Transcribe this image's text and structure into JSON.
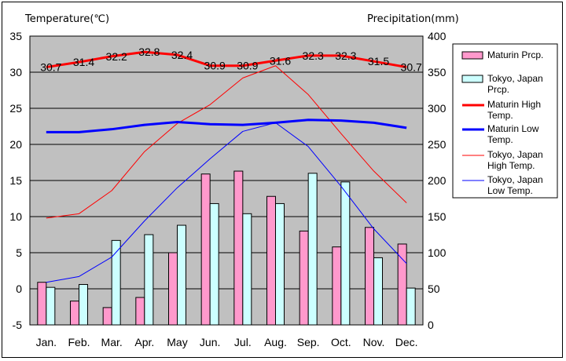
{
  "chart_data": {
    "type": "bar+line",
    "left_axis_title": "Temperature(℃)",
    "right_axis_title": "Precipitation(mm)",
    "ylim_left": [
      -5,
      35
    ],
    "ylim_right": [
      0,
      400
    ],
    "left_ticks": [
      "35",
      "30",
      "25",
      "20",
      "15",
      "10",
      "5",
      "0",
      "-5"
    ],
    "right_ticks": [
      "400",
      "350",
      "300",
      "250",
      "200",
      "150",
      "100",
      "50",
      "0"
    ],
    "categories": [
      "Jan.",
      "Feb.",
      "Mar.",
      "Apr.",
      "May",
      "Jun.",
      "Jul.",
      "Aug.",
      "Sep.",
      "Oct.",
      "Nov.",
      "Dec."
    ],
    "grid": true,
    "legend_position": "right",
    "series": [
      {
        "name": "Maturin Prcp.",
        "type": "bar",
        "axis": "right",
        "color": "#ff99cc",
        "values": [
          59,
          33,
          24,
          38,
          100,
          209,
          213,
          178,
          130,
          108,
          135,
          112
        ]
      },
      {
        "name": "Tokyo, Japan Prcp.",
        "type": "bar",
        "axis": "right",
        "color": "#ccffff",
        "values": [
          52,
          56,
          117,
          125,
          138,
          168,
          154,
          168,
          210,
          198,
          93,
          51
        ]
      },
      {
        "name": "Maturin High Temp.",
        "type": "line",
        "axis": "left",
        "color": "#ff0000",
        "width": 3,
        "values": [
          30.7,
          31.4,
          32.2,
          32.8,
          32.4,
          30.9,
          30.9,
          31.6,
          32.3,
          32.3,
          31.5,
          30.7
        ],
        "data_labels": [
          "30.7",
          "31.4",
          "32.2",
          "32.8",
          "32.4",
          "30.9",
          "30.9",
          "31.6",
          "32.3",
          "32.3",
          "31.5",
          "30.7"
        ]
      },
      {
        "name": "Maturin Low Temp.",
        "type": "line",
        "axis": "left",
        "color": "#0000ff",
        "width": 3,
        "values": [
          21.7,
          21.7,
          22.1,
          22.7,
          23.1,
          22.8,
          22.7,
          23.0,
          23.4,
          23.3,
          23.0,
          22.3
        ]
      },
      {
        "name": "Tokyo, Japan High Temp.",
        "type": "line",
        "axis": "left",
        "color": "#ff0000",
        "width": 1,
        "values": [
          9.8,
          10.4,
          13.6,
          19.0,
          22.9,
          25.5,
          29.2,
          30.9,
          26.9,
          21.5,
          16.3,
          11.9
        ]
      },
      {
        "name": "Tokyo, Japan Low Temp.",
        "type": "line",
        "axis": "left",
        "color": "#0000ff",
        "width": 1,
        "values": [
          0.9,
          1.7,
          4.4,
          9.4,
          14.0,
          18.0,
          21.8,
          23.0,
          19.7,
          14.2,
          8.3,
          3.5
        ]
      }
    ],
    "legend_entries": [
      {
        "label": "Maturin Prcp.",
        "kind": "bar",
        "color": "#ff99cc"
      },
      {
        "label": "Tokyo, Japan Prcp.",
        "kind": "bar",
        "color": "#ccffff"
      },
      {
        "label": "Maturin High Temp.",
        "kind": "line",
        "color": "#ff0000",
        "width": 3
      },
      {
        "label": "Maturin Low Temp.",
        "kind": "line",
        "color": "#0000ff",
        "width": 3
      },
      {
        "label": "Tokyo, Japan High Temp.",
        "kind": "line",
        "color": "#ff0000",
        "width": 1
      },
      {
        "label": "Tokyo, Japan Low Temp.",
        "kind": "line",
        "color": "#0000ff",
        "width": 1
      }
    ]
  }
}
